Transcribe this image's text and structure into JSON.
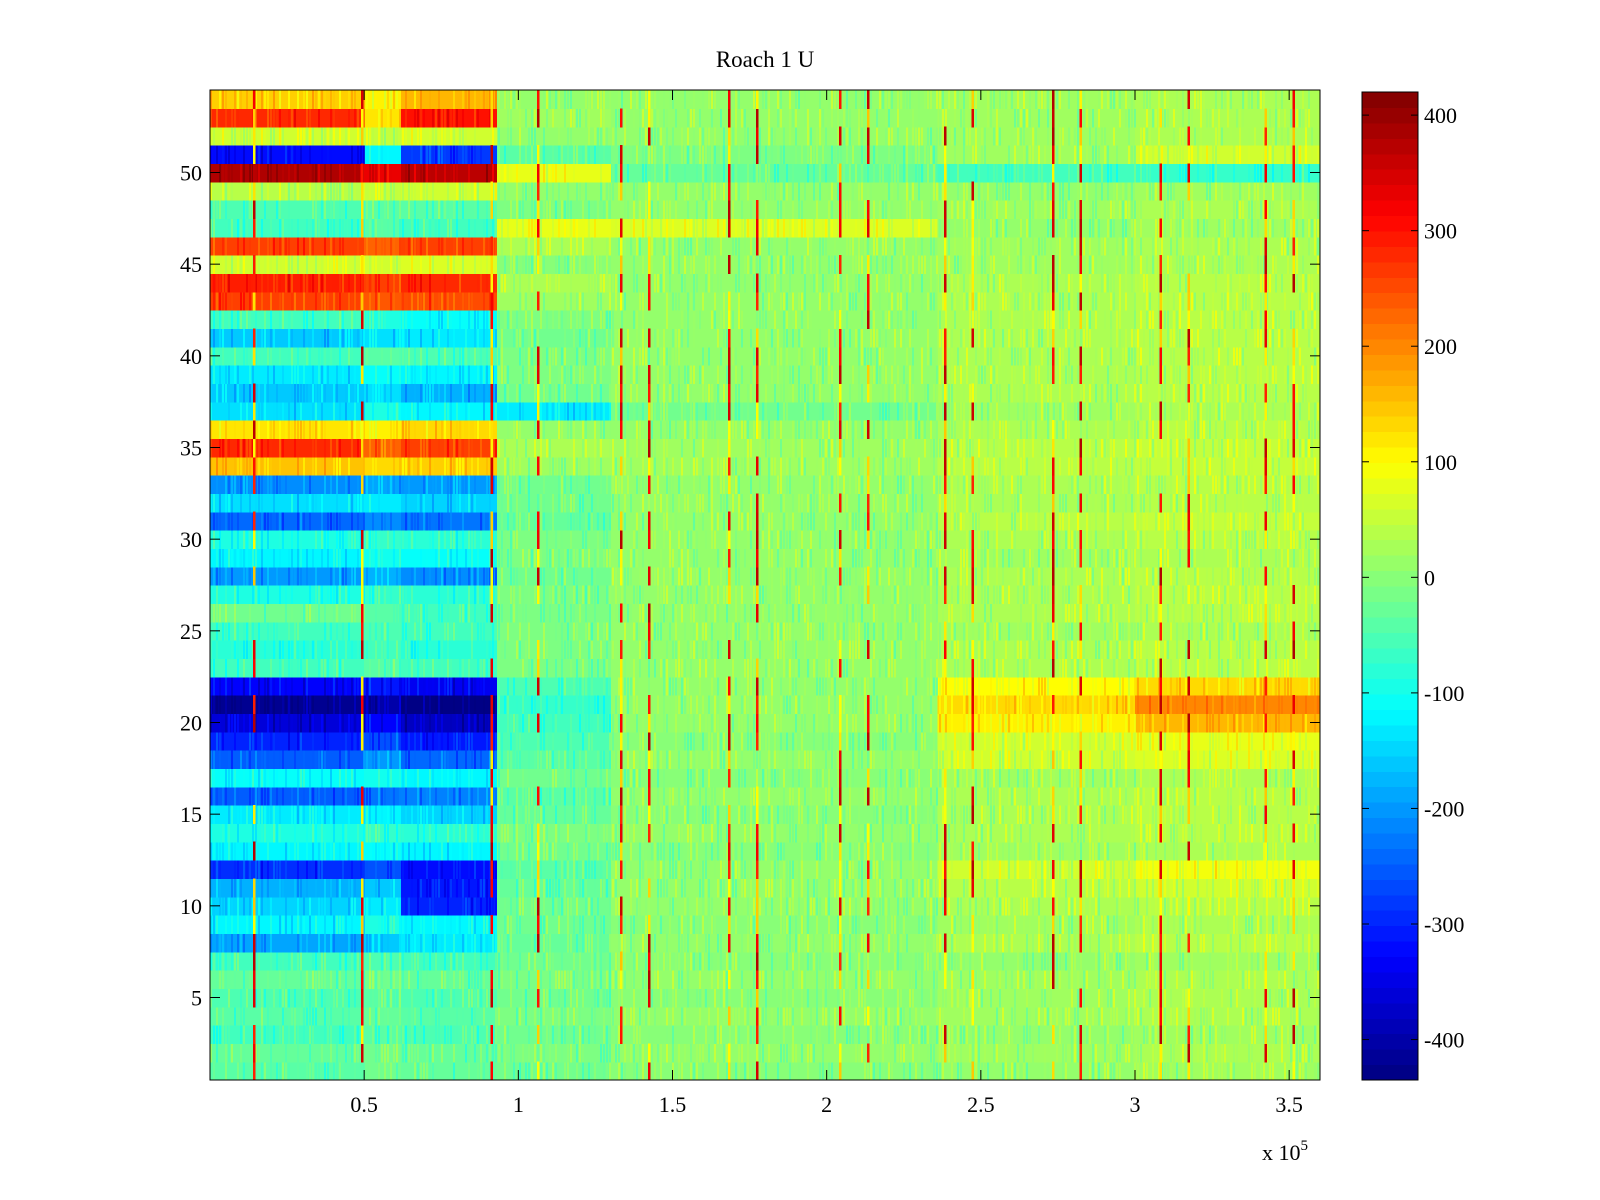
{
  "chart_data": {
    "type": "heatmap",
    "title": "Roach 1 U",
    "xlabel": "",
    "ylabel": "",
    "x_multiplier_label": "x 10",
    "x_multiplier_exponent": "5",
    "xlim": [
      0,
      360000
    ],
    "ylim": [
      0.5,
      54.5
    ],
    "x_ticks": [
      {
        "value": 50000,
        "label": "0.5"
      },
      {
        "value": 100000,
        "label": "1"
      },
      {
        "value": 150000,
        "label": "1.5"
      },
      {
        "value": 200000,
        "label": "2"
      },
      {
        "value": 250000,
        "label": "2.5"
      },
      {
        "value": 300000,
        "label": "3"
      },
      {
        "value": 350000,
        "label": "3.5"
      }
    ],
    "y_ticks": [
      {
        "value": 5,
        "label": "5"
      },
      {
        "value": 10,
        "label": "10"
      },
      {
        "value": 15,
        "label": "15"
      },
      {
        "value": 20,
        "label": "20"
      },
      {
        "value": 25,
        "label": "25"
      },
      {
        "value": 30,
        "label": "30"
      },
      {
        "value": 35,
        "label": "35"
      },
      {
        "value": 40,
        "label": "40"
      },
      {
        "value": 45,
        "label": "45"
      },
      {
        "value": 50,
        "label": "50"
      }
    ],
    "colorbar": {
      "colormap": "jet",
      "range": [
        -435,
        420
      ],
      "ticks": [
        {
          "value": 400,
          "label": "400"
        },
        {
          "value": 300,
          "label": "300"
        },
        {
          "value": 200,
          "label": "200"
        },
        {
          "value": 100,
          "label": "100"
        },
        {
          "value": 0,
          "label": "0"
        },
        {
          "value": -100,
          "label": "-100"
        },
        {
          "value": -200,
          "label": "-200"
        },
        {
          "value": -300,
          "label": "-300"
        },
        {
          "value": -400,
          "label": "-400"
        }
      ]
    },
    "rows": 54,
    "segments_x": [
      0,
      50000,
      62000,
      93000,
      130000,
      236000,
      300000,
      360000
    ],
    "row_segment_values": [
      [
        -40,
        -20,
        -30,
        -20,
        0,
        10,
        20
      ],
      [
        -30,
        -20,
        -30,
        -10,
        10,
        20,
        30
      ],
      [
        -60,
        -40,
        -50,
        -20,
        0,
        10,
        20
      ],
      [
        -40,
        -30,
        -40,
        -10,
        10,
        20,
        30
      ],
      [
        -50,
        -40,
        -50,
        -20,
        0,
        20,
        30
      ],
      [
        -30,
        -20,
        -30,
        -10,
        10,
        20,
        30
      ],
      [
        -60,
        -50,
        -60,
        -20,
        0,
        10,
        20
      ],
      [
        -190,
        -160,
        -130,
        -30,
        10,
        30,
        40
      ],
      [
        -120,
        -90,
        -120,
        -20,
        0,
        20,
        30
      ],
      [
        -150,
        -130,
        -300,
        -20,
        10,
        30,
        40
      ],
      [
        -180,
        -160,
        -310,
        -30,
        10,
        40,
        60
      ],
      [
        -290,
        -260,
        -320,
        -40,
        10,
        60,
        90
      ],
      [
        -120,
        -110,
        -120,
        -20,
        0,
        20,
        30
      ],
      [
        -90,
        -70,
        -80,
        -10,
        10,
        30,
        40
      ],
      [
        -130,
        -120,
        -150,
        -30,
        0,
        30,
        40
      ],
      [
        -250,
        -230,
        -220,
        -40,
        10,
        30,
        40
      ],
      [
        -110,
        -100,
        -120,
        -20,
        0,
        20,
        30
      ],
      [
        -250,
        -200,
        -240,
        -40,
        10,
        60,
        70
      ],
      [
        -300,
        -260,
        -310,
        -50,
        0,
        60,
        80
      ],
      [
        -360,
        -330,
        -380,
        -60,
        10,
        110,
        160
      ],
      [
        -420,
        -400,
        -430,
        -70,
        10,
        130,
        200
      ],
      [
        -330,
        -310,
        -340,
        -50,
        10,
        100,
        130
      ],
      [
        -60,
        -40,
        -60,
        -10,
        10,
        30,
        40
      ],
      [
        -80,
        -60,
        -80,
        -10,
        10,
        30,
        40
      ],
      [
        -60,
        -50,
        -60,
        -10,
        10,
        20,
        30
      ],
      [
        -20,
        -40,
        -60,
        -10,
        10,
        30,
        40
      ],
      [
        -90,
        -70,
        -80,
        -10,
        10,
        30,
        40
      ],
      [
        -200,
        -180,
        -210,
        -20,
        10,
        30,
        40
      ],
      [
        -120,
        -100,
        -110,
        -10,
        10,
        20,
        30
      ],
      [
        -90,
        -70,
        -80,
        -10,
        10,
        30,
        40
      ],
      [
        -240,
        -210,
        -230,
        -30,
        10,
        40,
        50
      ],
      [
        -140,
        -130,
        -150,
        -20,
        10,
        30,
        40
      ],
      [
        -210,
        -190,
        -200,
        -20,
        10,
        30,
        40
      ],
      [
        150,
        130,
        140,
        20,
        20,
        40,
        50
      ],
      [
        280,
        230,
        260,
        30,
        20,
        40,
        50
      ],
      [
        120,
        110,
        130,
        10,
        10,
        30,
        40
      ],
      [
        -140,
        -90,
        -120,
        -130,
        -20,
        20,
        30
      ],
      [
        -160,
        -140,
        -180,
        -20,
        10,
        30,
        40
      ],
      [
        -130,
        -110,
        -120,
        -10,
        10,
        30,
        40
      ],
      [
        -60,
        -40,
        -50,
        -10,
        10,
        30,
        40
      ],
      [
        -160,
        -140,
        -130,
        -20,
        10,
        30,
        40
      ],
      [
        -60,
        -90,
        -110,
        -10,
        10,
        30,
        40
      ],
      [
        260,
        240,
        250,
        20,
        10,
        30,
        40
      ],
      [
        290,
        260,
        280,
        30,
        10,
        30,
        40
      ],
      [
        60,
        60,
        70,
        0,
        10,
        20,
        30
      ],
      [
        260,
        230,
        260,
        30,
        10,
        20,
        30
      ],
      [
        -60,
        -40,
        -60,
        80,
        70,
        10,
        20
      ],
      [
        -50,
        -40,
        -40,
        -10,
        10,
        20,
        30
      ],
      [
        40,
        50,
        60,
        10,
        10,
        10,
        20
      ],
      [
        380,
        330,
        370,
        80,
        -30,
        -60,
        -70
      ],
      [
        -320,
        -120,
        -280,
        -40,
        -10,
        20,
        60
      ],
      [
        60,
        50,
        60,
        10,
        10,
        20,
        30
      ],
      [
        280,
        120,
        300,
        20,
        10,
        20,
        30
      ],
      [
        140,
        110,
        160,
        10,
        10,
        20,
        30
      ]
    ],
    "event_lines_x": [
      14000,
      49000,
      91000,
      106000,
      133000,
      142000,
      168000,
      177000,
      204000,
      213000,
      238000,
      247000,
      273000,
      282000,
      308000,
      317000,
      342000,
      351000
    ]
  }
}
